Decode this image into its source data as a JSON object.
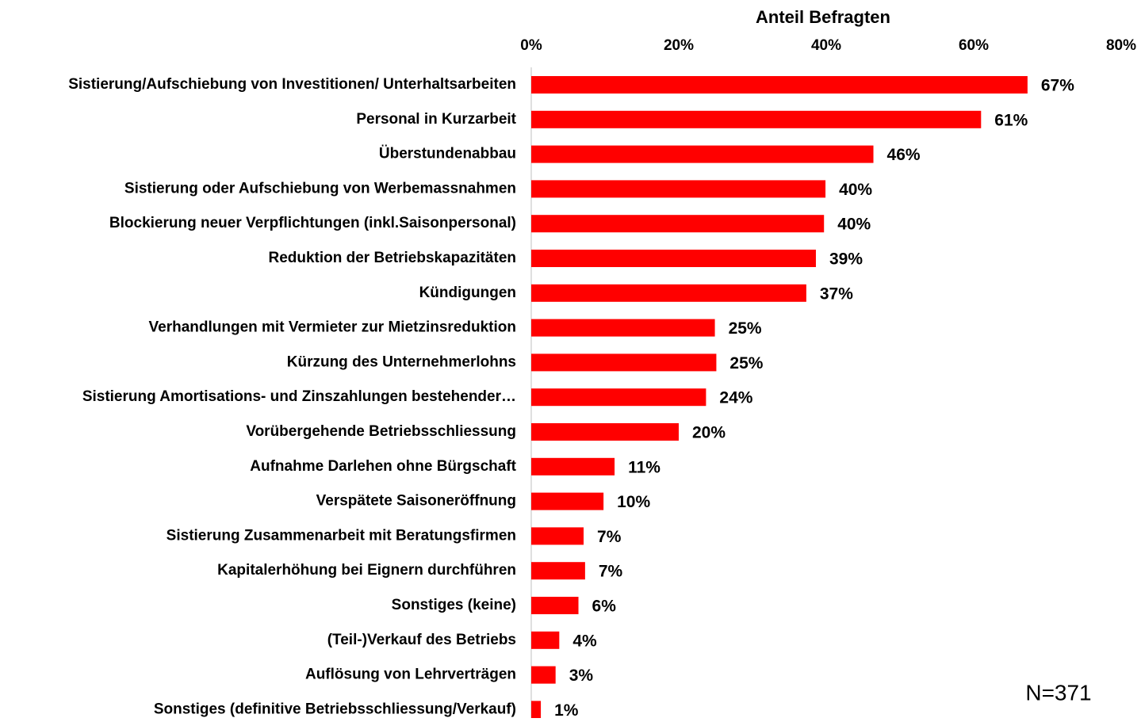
{
  "chart_data": {
    "type": "hbar",
    "title": "Anteil Befragten",
    "annotation": "N=371",
    "categories": [
      "Sistierung/Aufschiebung von Investitionen/ Unterhaltsarbeiten",
      "Personal  in Kurzarbeit",
      "Überstundenabbau",
      "Sistierung oder Aufschiebung von Werbemassnahmen",
      "Blockierung neuer Verpflichtungen (inkl.Saisonpersonal)",
      "Reduktion der Betriebskapazitäten",
      "Kündigungen",
      "Verhandlungen mit Vermieter zur Mietzinsreduktion",
      "Kürzung des Unternehmerlohns",
      "Sistierung Amortisations- und Zinszahlungen bestehender…",
      "Vorübergehende Betriebsschliessung",
      "Aufnahme Darlehen ohne Bürgschaft",
      "Verspätete Saisoneröffnung",
      "Sistierung Zusammenarbeit mit Beratungsfirmen",
      "Kapitalerhöhung bei Eignern durchführen",
      "Sonstiges (keine)",
      "(Teil-)Verkauf des Betriebs",
      "Auflösung von Lehrverträgen",
      "Sonstiges (definitive Betriebsschliessung/Verkauf)"
    ],
    "values": [
      67.3,
      61.0,
      46.4,
      39.9,
      39.7,
      38.6,
      37.3,
      24.9,
      25.1,
      23.7,
      20.0,
      11.3,
      9.8,
      7.1,
      7.3,
      6.4,
      3.8,
      3.3,
      1.3
    ],
    "value_labels": [
      "67%",
      "61%",
      "46%",
      "40%",
      "40%",
      "39%",
      "37%",
      "25%",
      "25%",
      "24%",
      "20%",
      "11%",
      "10%",
      "7%",
      "7%",
      "6%",
      "4%",
      "3%",
      "1%"
    ],
    "color": "#ff0000",
    "xlim": [
      0,
      80
    ],
    "xticks": [
      {
        "value": 0,
        "label": "0%"
      },
      {
        "value": 20,
        "label": "20%"
      },
      {
        "value": 40,
        "label": "40%"
      },
      {
        "value": 60,
        "label": "60%"
      },
      {
        "value": 80,
        "label": "80%"
      }
    ]
  }
}
